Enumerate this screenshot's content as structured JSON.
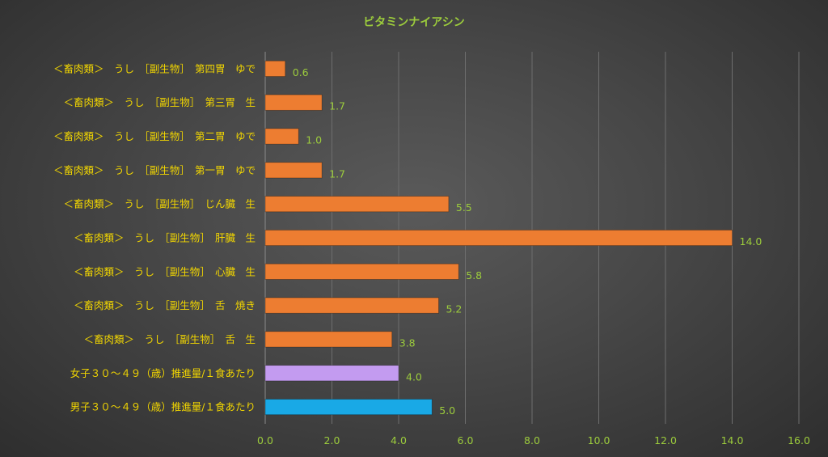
{
  "chart_data": {
    "type": "bar",
    "orientation": "horizontal",
    "title": "ビタミンナイアシン",
    "xlabel": "",
    "ylabel": "",
    "xlim": [
      0,
      16
    ],
    "ticks": [
      "0.0",
      "2.0",
      "4.0",
      "6.0",
      "8.0",
      "10.0",
      "12.0",
      "14.0",
      "16.0"
    ],
    "grid": "vertical",
    "legend": "none",
    "categories": [
      "＜畜肉類＞　うし　［副生物］　第四胃　ゆで",
      "＜畜肉類＞　うし　［副生物］　第三胃　生",
      "＜畜肉類＞　うし　［副生物］　第二胃　ゆで",
      "＜畜肉類＞　うし　［副生物］　第一胃　ゆで",
      "＜畜肉類＞　うし　［副生物］　じん臓　生",
      "＜畜肉類＞　うし　［副生物］　肝臓　生",
      "＜畜肉類＞　うし　［副生物］　心臓　生",
      "＜畜肉類＞　うし　［副生物］　舌　焼き",
      "＜畜肉類＞　うし　［副生物］　舌　生",
      "女子３０～４９（歳）推進量/１食あたり",
      "男子３０～４９（歳）推進量/１食あたり"
    ],
    "values": [
      0.6,
      1.7,
      1.0,
      1.7,
      5.5,
      14.0,
      5.8,
      5.2,
      3.8,
      4.0,
      5.0
    ],
    "value_labels": [
      "0.6",
      "1.7",
      "1.0",
      "1.7",
      "5.5",
      "14.0",
      "5.8",
      "5.2",
      "3.8",
      "4.0",
      "5.0"
    ],
    "colors": [
      "#ed7d31",
      "#ed7d31",
      "#ed7d31",
      "#ed7d31",
      "#ed7d31",
      "#ed7d31",
      "#ed7d31",
      "#ed7d31",
      "#ed7d31",
      "#c39bf0",
      "#19a9e6"
    ]
  }
}
